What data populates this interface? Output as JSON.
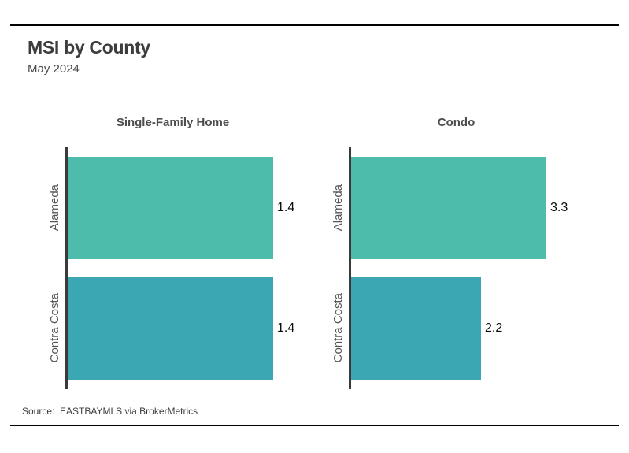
{
  "header": {
    "title": "MSI by County",
    "subtitle": "May 2024"
  },
  "footer": {
    "source": "Source:  EASTBAYMLS via BrokerMetrics"
  },
  "colors": {
    "alameda_bar": "#4ebcab",
    "contra_costa_bar": "#3ba7b2",
    "axis_line": "#3a3a3a",
    "rule_line": "#000000",
    "title_text": "#3d3d3d",
    "category_text": "#555555"
  },
  "chart_data": [
    {
      "type": "bar",
      "orientation": "horizontal",
      "title": "Single-Family Home",
      "categories": [
        "Alameda",
        "Contra Costa"
      ],
      "values": [
        1.4,
        1.4
      ],
      "value_labels": [
        "1.4",
        "1.4"
      ],
      "bar_colors": [
        "#4ebcab",
        "#3ba7b2"
      ],
      "xlim": [
        0,
        1.45
      ],
      "grid": false,
      "legend": "none"
    },
    {
      "type": "bar",
      "orientation": "horizontal",
      "title": "Condo",
      "categories": [
        "Alameda",
        "Contra Costa"
      ],
      "values": [
        3.3,
        2.2
      ],
      "value_labels": [
        "3.3",
        "2.2"
      ],
      "bar_colors": [
        "#4ebcab",
        "#3ba7b2"
      ],
      "xlim": [
        0,
        3.6
      ],
      "grid": false,
      "legend": "none"
    }
  ]
}
